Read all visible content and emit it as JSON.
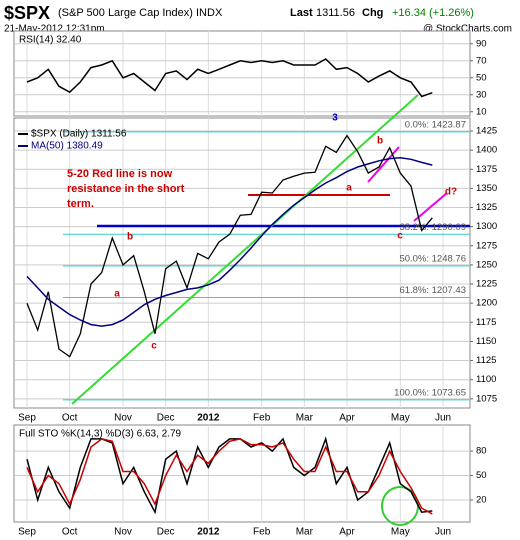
{
  "header": {
    "symbol": "$SPX",
    "name": "(S&P 500 Large Cap Index) INDX",
    "date": "21-May-2012 12:31pm",
    "last_label": "Last",
    "last": "1311.56",
    "chg_label": "Chg",
    "chg": "+16.34 (+1.26%)",
    "source": "@ StockCharts.com"
  },
  "chart_data": [
    {
      "type": "line",
      "title": "RSI(14) 32.40",
      "categories": [
        "Sep",
        null,
        null,
        null,
        "Oct",
        null,
        null,
        null,
        null,
        "Nov",
        null,
        null,
        null,
        "Dec",
        null,
        null,
        null,
        "2012",
        null,
        null,
        null,
        null,
        "Feb",
        null,
        null,
        null,
        "Mar",
        null,
        null,
        null,
        "Apr",
        null,
        null,
        null,
        null,
        "May",
        null,
        null,
        null,
        "Jun"
      ],
      "series": [
        {
          "color": "#000000",
          "values": [
            45,
            50,
            60,
            40,
            33,
            45,
            62,
            65,
            70,
            50,
            55,
            45,
            35,
            55,
            58,
            48,
            60,
            55,
            60,
            65,
            70,
            68,
            70,
            68,
            70,
            65,
            65,
            65,
            72,
            60,
            62,
            55,
            45,
            52,
            58,
            50,
            45,
            28,
            32.4,
            null
          ]
        }
      ],
      "ylim": [
        5,
        105
      ],
      "yticks": [
        10,
        30,
        50,
        70,
        90
      ],
      "grid": true
    },
    {
      "type": "line",
      "categories": [
        "Sep",
        null,
        null,
        null,
        "Oct",
        null,
        null,
        null,
        null,
        "Nov",
        null,
        null,
        null,
        "Dec",
        null,
        null,
        null,
        "2012",
        null,
        null,
        null,
        null,
        "Feb",
        null,
        null,
        null,
        "Mar",
        null,
        null,
        null,
        "Apr",
        null,
        null,
        null,
        null,
        "May",
        null,
        null,
        null,
        "Jun"
      ],
      "series": [
        {
          "name": "$SPX (Daily) 1311.56",
          "color": "#000000",
          "values": [
            1200,
            1165,
            1215,
            1140,
            1130,
            1160,
            1225,
            1240,
            1285,
            1250,
            1262,
            1215,
            1160,
            1245,
            1255,
            1220,
            1265,
            1258,
            1280,
            1290,
            1315,
            1316,
            1345,
            1344,
            1361,
            1366,
            1370,
            1371,
            1405,
            1397,
            1419,
            1398,
            1370,
            1378,
            1403,
            1370,
            1353,
            1295,
            1311.56,
            null
          ]
        },
        {
          "name": "MA(50) 1380.49",
          "color": "#000080",
          "values": [
            1235,
            1220,
            1205,
            1195,
            1185,
            1178,
            1172,
            1170,
            1172,
            1178,
            1188,
            1198,
            1205,
            1210,
            1214,
            1218,
            1220,
            1224,
            1230,
            1243,
            1257,
            1272,
            1288,
            1303,
            1316,
            1328,
            1338,
            1348,
            1357,
            1364,
            1372,
            1378,
            1382,
            1386,
            1389,
            1390,
            1388,
            1384,
            1380.49,
            null
          ]
        }
      ],
      "levels": [
        {
          "value": 1423.87,
          "label": "0.0%: 1423.87"
        },
        {
          "value": 1290.09,
          "label": "38.2%: 1290.09"
        },
        {
          "value": 1248.76,
          "label": "50.0%: 1248.76"
        },
        {
          "value": 1207.43,
          "label": "61.8%: 1207.43"
        },
        {
          "value": 1073.65,
          "label": "100.0%: 1073.65"
        }
      ],
      "note": [
        "5-20 Red line is now",
        "resistance in the short",
        "term."
      ],
      "annotations": [
        "3",
        "a",
        "b",
        "c",
        "a",
        "b",
        "c",
        "d?"
      ],
      "ylim": [
        1063,
        1442
      ],
      "yticks": [
        1075,
        1100,
        1125,
        1150,
        1175,
        1200,
        1225,
        1250,
        1275,
        1300,
        1325,
        1350,
        1375,
        1400,
        1425
      ],
      "grid": true
    },
    {
      "type": "line",
      "title": "Full STO %K(14,3) %D(3) 6.63, 2.79",
      "categories": [
        "Sep",
        null,
        null,
        null,
        "Oct",
        null,
        null,
        null,
        null,
        "Nov",
        null,
        null,
        null,
        "Dec",
        null,
        null,
        null,
        "2012",
        null,
        null,
        null,
        null,
        "Feb",
        null,
        null,
        null,
        "Mar",
        null,
        null,
        null,
        "Apr",
        null,
        null,
        null,
        null,
        "May",
        null,
        null,
        null,
        "Jun"
      ],
      "series": [
        {
          "color": "#000000",
          "values": [
            70,
            20,
            60,
            30,
            10,
            60,
            95,
            95,
            90,
            40,
            60,
            30,
            5,
            70,
            80,
            40,
            85,
            60,
            85,
            95,
            95,
            85,
            90,
            80,
            95,
            60,
            50,
            60,
            95,
            40,
            60,
            20,
            30,
            60,
            90,
            40,
            30,
            5,
            6.63,
            null
          ]
        },
        {
          "color": "#cc0000",
          "values": [
            60,
            30,
            50,
            40,
            15,
            45,
            85,
            95,
            92,
            55,
            55,
            40,
            15,
            50,
            75,
            55,
            75,
            65,
            80,
            92,
            95,
            88,
            88,
            85,
            90,
            70,
            55,
            55,
            85,
            55,
            55,
            30,
            30,
            50,
            80,
            55,
            35,
            10,
            2.79,
            null
          ]
        }
      ],
      "ylim": [
        -7,
        112
      ],
      "yticks": [
        20,
        50,
        80
      ],
      "grid": true
    }
  ]
}
